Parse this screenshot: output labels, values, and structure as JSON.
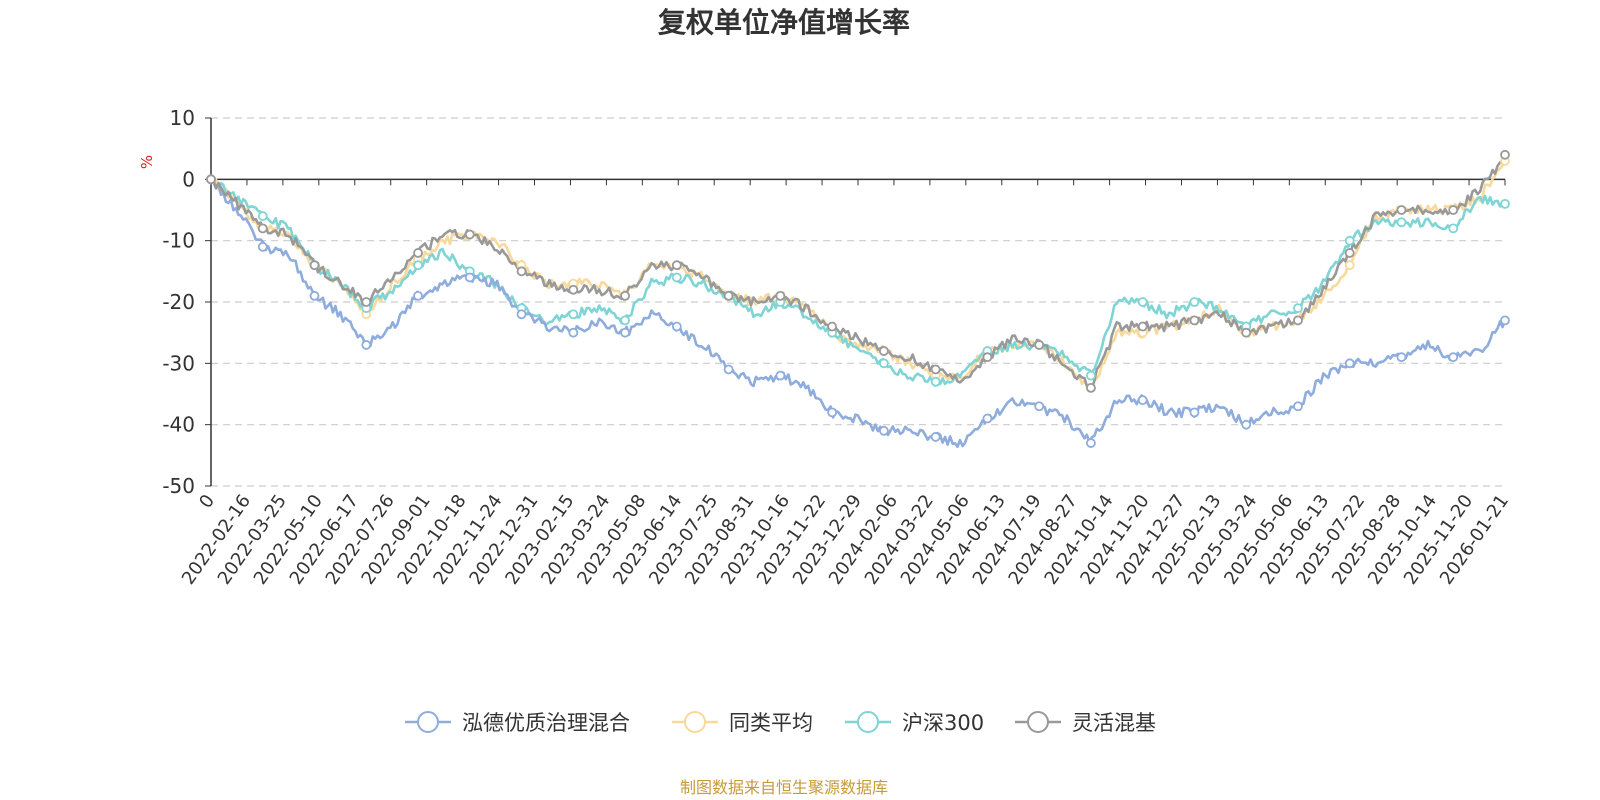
{
  "chart_data": {
    "type": "line",
    "title": "复权单位净值增长率",
    "unit_label": "%",
    "ylim": [
      -50,
      10
    ],
    "yticks": [
      10,
      0,
      -10,
      -20,
      -30,
      -40,
      -50
    ],
    "grid": "dashed-horizontal",
    "legend_position": "bottom-center",
    "xlabel": "",
    "ylabel": "%",
    "x_tick_labels": [
      "0",
      "2022-02-16",
      "2022-03-25",
      "2022-05-10",
      "2022-06-17",
      "2022-07-26",
      "2022-09-01",
      "2022-10-18",
      "2022-11-24",
      "2022-12-31",
      "2023-02-15",
      "2023-03-24",
      "2023-05-08",
      "2023-06-14",
      "2023-07-25",
      "2023-08-31",
      "2023-10-16",
      "2023-11-22",
      "2023-12-29",
      "2024-02-06",
      "2024-03-22",
      "2024-05-06",
      "2024-06-13",
      "2024-07-19",
      "2024-08-27",
      "2024-10-14",
      "2024-11-20",
      "2024-12-27",
      "2025-02-13",
      "2025-03-24",
      "2025-05-06",
      "2025-06-13",
      "2025-07-22",
      "2025-08-28",
      "2025-10-14",
      "2025-11-20",
      "2026-01-21"
    ],
    "series": [
      {
        "name": "泓德优质治理混合",
        "color": "#8eacdc",
        "values": [
          0,
          -5,
          -11,
          -12,
          -19,
          -22,
          -27,
          -24,
          -19,
          -17,
          -16,
          -17,
          -22,
          -24,
          -25,
          -23,
          -25,
          -22,
          -24,
          -27,
          -31,
          -33,
          -32,
          -34,
          -38,
          -39,
          -41,
          -41,
          -42,
          -43,
          -39,
          -36,
          -37,
          -39,
          -43,
          -36,
          -36,
          -38,
          -38,
          -37,
          -40,
          -38,
          -37,
          -32,
          -30,
          -30,
          -29,
          -27,
          -29,
          -28,
          -23
        ]
      },
      {
        "name": "同类平均",
        "color": "#f8d99b",
        "values": [
          0,
          -4,
          -8,
          -9,
          -14,
          -17,
          -22,
          -17,
          -13,
          -10,
          -9,
          -10,
          -14,
          -17,
          -17,
          -17,
          -19,
          -14,
          -14,
          -16,
          -19,
          -20,
          -19,
          -21,
          -25,
          -27,
          -28,
          -30,
          -32,
          -32,
          -28,
          -27,
          -27,
          -30,
          -34,
          -25,
          -25,
          -24,
          -23,
          -21,
          -25,
          -24,
          -23,
          -19,
          -14,
          -6,
          -5,
          -5,
          -5,
          -3,
          3
        ]
      },
      {
        "name": "沪深300",
        "color": "#7fd4d4",
        "values": [
          0,
          -3,
          -6,
          -8,
          -14,
          -17,
          -21,
          -18,
          -14,
          -12,
          -15,
          -17,
          -21,
          -23,
          -22,
          -21,
          -23,
          -17,
          -16,
          -17,
          -19,
          -22,
          -20,
          -22,
          -25,
          -28,
          -30,
          -32,
          -33,
          -32,
          -28,
          -27,
          -27,
          -29,
          -32,
          -20,
          -20,
          -22,
          -20,
          -21,
          -24,
          -22,
          -21,
          -17,
          -10,
          -7,
          -7,
          -7,
          -8,
          -3,
          -4
        ]
      },
      {
        "name": "灵活混基",
        "color": "#999999",
        "values": [
          0,
          -4,
          -8,
          -9,
          -14,
          -17,
          -20,
          -16,
          -12,
          -9,
          -9,
          -11,
          -15,
          -17,
          -18,
          -18,
          -19,
          -14,
          -14,
          -16,
          -19,
          -20,
          -19,
          -21,
          -24,
          -26,
          -28,
          -29,
          -31,
          -33,
          -29,
          -26,
          -27,
          -30,
          -34,
          -24,
          -24,
          -24,
          -23,
          -22,
          -25,
          -24,
          -23,
          -18,
          -12,
          -6,
          -5,
          -5,
          -5,
          -2,
          4
        ]
      }
    ]
  },
  "legend": {
    "items": [
      {
        "label": "泓德优质治理混合",
        "color": "#8eacdc"
      },
      {
        "label": "同类平均",
        "color": "#f8d99b"
      },
      {
        "label": "沪深300",
        "color": "#7fd4d4"
      },
      {
        "label": "灵活混基",
        "color": "#999999"
      }
    ]
  },
  "source_text": "制图数据来自恒生聚源数据库",
  "colors": {
    "unit_label": "#e01f1f",
    "source_text": "#c79a3a",
    "grid": "#cccccc",
    "axis": "#333333"
  }
}
